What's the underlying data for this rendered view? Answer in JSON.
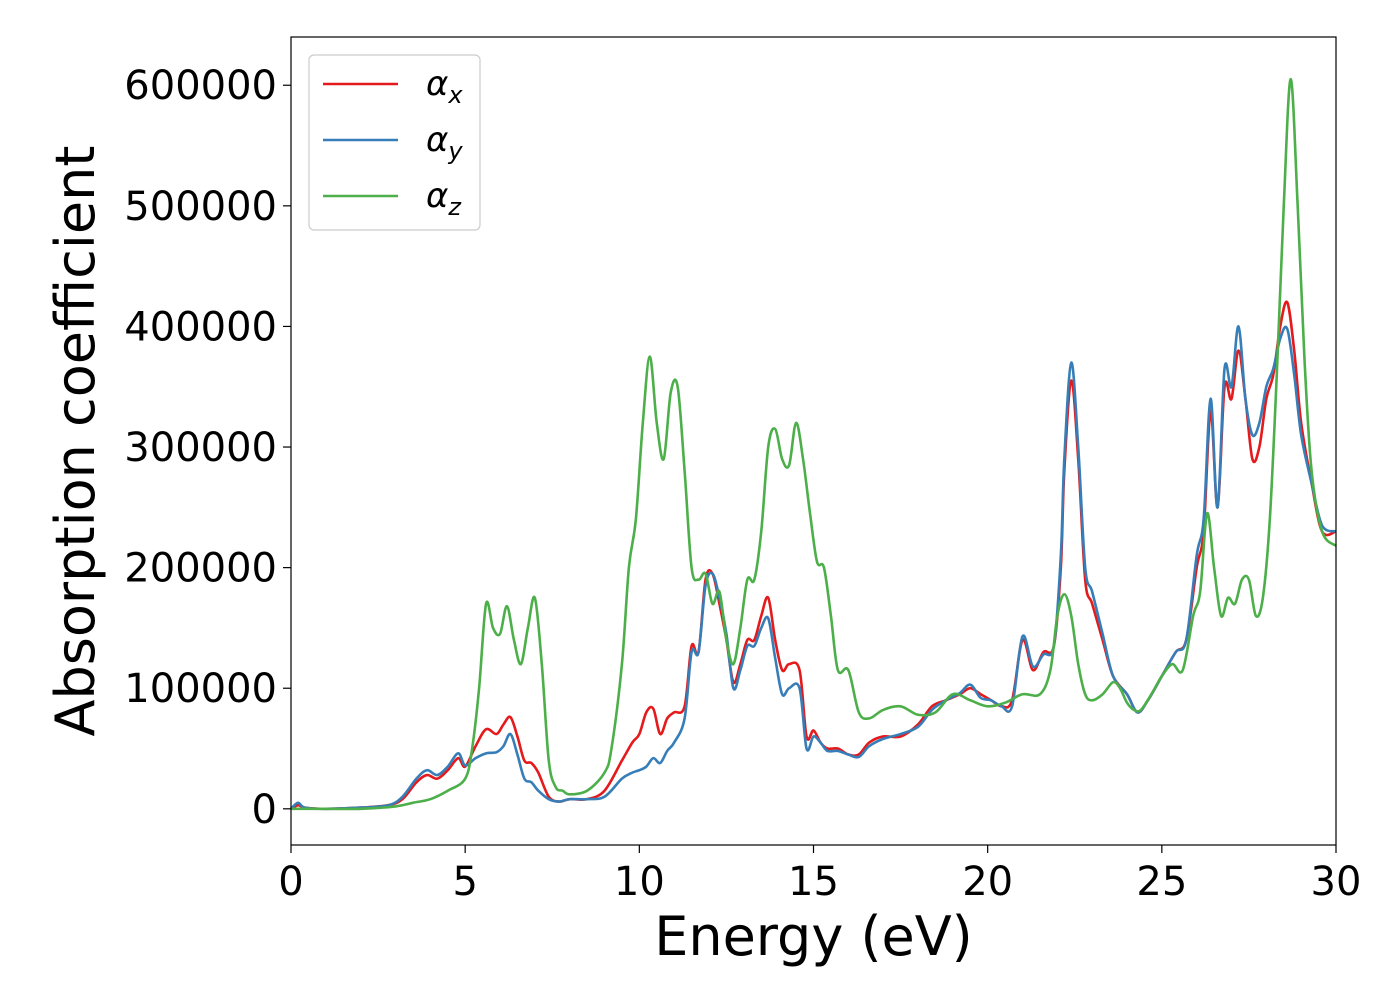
{
  "chart_data": {
    "type": "line",
    "title": "",
    "xlabel": "Energy (eV)",
    "ylabel": "Absorption coefficient",
    "xlim": [
      0,
      30
    ],
    "ylim": [
      -30000,
      640000
    ],
    "xticks": [
      0,
      5,
      10,
      15,
      20,
      25,
      30
    ],
    "xtick_labels": [
      "0",
      "5",
      "10",
      "15",
      "20",
      "25",
      "30"
    ],
    "yticks": [
      0,
      100000,
      200000,
      300000,
      400000,
      500000,
      600000
    ],
    "ytick_labels": [
      "0",
      "100000",
      "200000",
      "300000",
      "400000",
      "500000",
      "600000"
    ],
    "grid": false,
    "legend_position": "top-left",
    "series": [
      {
        "name": "α",
        "subscript": "x",
        "color": "#e41a1c",
        "x": [
          0,
          0.2,
          0.4,
          1,
          2,
          2.8,
          3.2,
          3.6,
          3.9,
          4.2,
          4.5,
          4.8,
          5,
          5.3,
          5.6,
          5.9,
          6.1,
          6.3,
          6.5,
          6.7,
          6.9,
          7.1,
          7.4,
          7.7,
          8,
          8.5,
          9,
          9.5,
          9.8,
          10,
          10.2,
          10.4,
          10.6,
          10.8,
          11,
          11.3,
          11.5,
          11.7,
          11.9,
          12.1,
          12.3,
          12.5,
          12.7,
          12.9,
          13.1,
          13.3,
          13.5,
          13.7,
          13.9,
          14.1,
          14.3,
          14.6,
          14.8,
          15,
          15.2,
          15.4,
          15.7,
          16,
          16.3,
          16.6,
          17,
          17.5,
          18,
          18.4,
          18.8,
          19.2,
          19.5,
          19.8,
          20.1,
          20.4,
          20.7,
          21,
          21.3,
          21.6,
          21.9,
          22.1,
          22.2,
          22.4,
          22.6,
          22.8,
          23,
          23.3,
          23.6,
          24,
          24.3,
          24.6,
          25,
          25.4,
          25.7,
          26,
          26.2,
          26.4,
          26.6,
          26.8,
          27,
          27.2,
          27.4,
          27.6,
          27.8,
          28,
          28.2,
          28.4,
          28.6,
          28.8,
          29,
          29.3,
          29.6,
          30
        ],
        "values": [
          0,
          3000,
          1000,
          0,
          1000,
          3000,
          8000,
          22000,
          28000,
          25000,
          32000,
          42000,
          35000,
          52000,
          66000,
          62000,
          70000,
          76000,
          60000,
          40000,
          38000,
          30000,
          10000,
          6000,
          8000,
          8000,
          15000,
          40000,
          55000,
          62000,
          80000,
          83000,
          62000,
          75000,
          80000,
          85000,
          135000,
          130000,
          190000,
          195000,
          170000,
          140000,
          105000,
          120000,
          140000,
          140000,
          160000,
          175000,
          140000,
          115000,
          120000,
          115000,
          60000,
          65000,
          55000,
          50000,
          50000,
          45000,
          45000,
          55000,
          60000,
          60000,
          70000,
          85000,
          90000,
          95000,
          100000,
          95000,
          90000,
          85000,
          90000,
          140000,
          115000,
          130000,
          135000,
          200000,
          280000,
          355000,
          290000,
          190000,
          170000,
          140000,
          110000,
          95000,
          80000,
          90000,
          110000,
          130000,
          140000,
          200000,
          230000,
          330000,
          250000,
          350000,
          340000,
          380000,
          340000,
          290000,
          300000,
          340000,
          360000,
          400000,
          420000,
          380000,
          320000,
          270000,
          230000,
          230000
        ]
      },
      {
        "name": "α",
        "subscript": "y",
        "color": "#377eb8",
        "x": [
          0,
          0.2,
          0.4,
          1,
          2,
          2.8,
          3.2,
          3.6,
          3.9,
          4.2,
          4.5,
          4.8,
          5,
          5.3,
          5.6,
          5.9,
          6.1,
          6.3,
          6.5,
          6.7,
          6.9,
          7.1,
          7.4,
          7.7,
          8,
          8.5,
          9,
          9.5,
          9.8,
          10,
          10.2,
          10.4,
          10.6,
          10.8,
          11,
          11.3,
          11.5,
          11.7,
          11.9,
          12.1,
          12.3,
          12.5,
          12.7,
          12.9,
          13.1,
          13.3,
          13.5,
          13.7,
          13.9,
          14.1,
          14.3,
          14.6,
          14.8,
          15,
          15.2,
          15.4,
          15.7,
          16,
          16.3,
          16.6,
          17,
          17.5,
          18,
          18.4,
          18.8,
          19.2,
          19.5,
          19.8,
          20.1,
          20.4,
          20.7,
          21,
          21.3,
          21.6,
          21.9,
          22.1,
          22.2,
          22.4,
          22.6,
          22.8,
          23,
          23.3,
          23.6,
          24,
          24.3,
          24.6,
          25,
          25.4,
          25.7,
          26,
          26.2,
          26.4,
          26.6,
          26.8,
          27,
          27.2,
          27.4,
          27.6,
          27.8,
          28,
          28.2,
          28.4,
          28.6,
          28.8,
          29,
          29.3,
          29.6,
          30
        ],
        "values": [
          0,
          5000,
          1000,
          0,
          1000,
          3000,
          10000,
          25000,
          32000,
          28000,
          35000,
          46000,
          36000,
          42000,
          46000,
          47000,
          52000,
          62000,
          45000,
          25000,
          22000,
          15000,
          8000,
          6000,
          8000,
          8000,
          10000,
          25000,
          30000,
          32000,
          35000,
          42000,
          38000,
          48000,
          55000,
          75000,
          130000,
          130000,
          185000,
          195000,
          175000,
          145000,
          100000,
          115000,
          135000,
          135000,
          150000,
          158000,
          125000,
          95000,
          100000,
          100000,
          50000,
          60000,
          55000,
          48000,
          48000,
          45000,
          43000,
          52000,
          58000,
          62000,
          68000,
          82000,
          90000,
          96000,
          103000,
          92000,
          90000,
          85000,
          85000,
          143000,
          118000,
          128000,
          135000,
          210000,
          290000,
          370000,
          300000,
          200000,
          180000,
          145000,
          110000,
          95000,
          80000,
          90000,
          110000,
          130000,
          140000,
          210000,
          240000,
          340000,
          250000,
          365000,
          350000,
          400000,
          340000,
          310000,
          320000,
          350000,
          365000,
          390000,
          398000,
          360000,
          310000,
          270000,
          235000,
          230000
        ]
      },
      {
        "name": "α",
        "subscript": "z",
        "color": "#4daf4a",
        "x": [
          0,
          1,
          2,
          3,
          3.5,
          4,
          4.5,
          5,
          5.2,
          5.4,
          5.6,
          5.8,
          6,
          6.2,
          6.4,
          6.6,
          6.8,
          7,
          7.2,
          7.4,
          7.6,
          7.8,
          8,
          8.5,
          9,
          9.2,
          9.5,
          9.7,
          9.9,
          10.1,
          10.3,
          10.5,
          10.7,
          10.9,
          11.1,
          11.3,
          11.5,
          11.7,
          11.9,
          12.1,
          12.3,
          12.5,
          12.7,
          12.9,
          13.1,
          13.3,
          13.5,
          13.7,
          13.9,
          14.1,
          14.3,
          14.5,
          14.7,
          14.9,
          15.1,
          15.3,
          15.5,
          15.7,
          16,
          16.3,
          16.6,
          17,
          17.5,
          18,
          18.5,
          19,
          19.5,
          20,
          20.5,
          21,
          21.5,
          21.8,
          22,
          22.2,
          22.4,
          22.6,
          22.8,
          23,
          23.3,
          23.6,
          23.8,
          24,
          24.2,
          24.4,
          24.7,
          25,
          25.3,
          25.6,
          25.9,
          26.1,
          26.3,
          26.5,
          26.7,
          26.9,
          27.1,
          27.3,
          27.5,
          27.7,
          27.9,
          28.1,
          28.3,
          28.5,
          28.7,
          28.9,
          29.1,
          29.3,
          29.6,
          30
        ],
        "values": [
          0,
          0,
          0,
          2000,
          5000,
          8000,
          15000,
          25000,
          50000,
          100000,
          170000,
          150000,
          145000,
          168000,
          140000,
          120000,
          150000,
          175000,
          120000,
          40000,
          18000,
          15000,
          12000,
          15000,
          30000,
          50000,
          120000,
          200000,
          240000,
          320000,
          375000,
          320000,
          290000,
          345000,
          350000,
          280000,
          200000,
          190000,
          195000,
          170000,
          180000,
          140000,
          120000,
          150000,
          190000,
          190000,
          230000,
          300000,
          315000,
          290000,
          285000,
          320000,
          290000,
          245000,
          205000,
          200000,
          160000,
          115000,
          115000,
          80000,
          75000,
          82000,
          85000,
          78000,
          80000,
          95000,
          90000,
          85000,
          88000,
          95000,
          95000,
          115000,
          160000,
          178000,
          160000,
          120000,
          95000,
          90000,
          95000,
          105000,
          100000,
          88000,
          82000,
          82000,
          95000,
          110000,
          120000,
          115000,
          160000,
          180000,
          245000,
          200000,
          160000,
          175000,
          170000,
          190000,
          190000,
          160000,
          175000,
          240000,
          360000,
          500000,
          605000,
          500000,
          370000,
          280000,
          230000,
          218000
        ]
      }
    ]
  }
}
